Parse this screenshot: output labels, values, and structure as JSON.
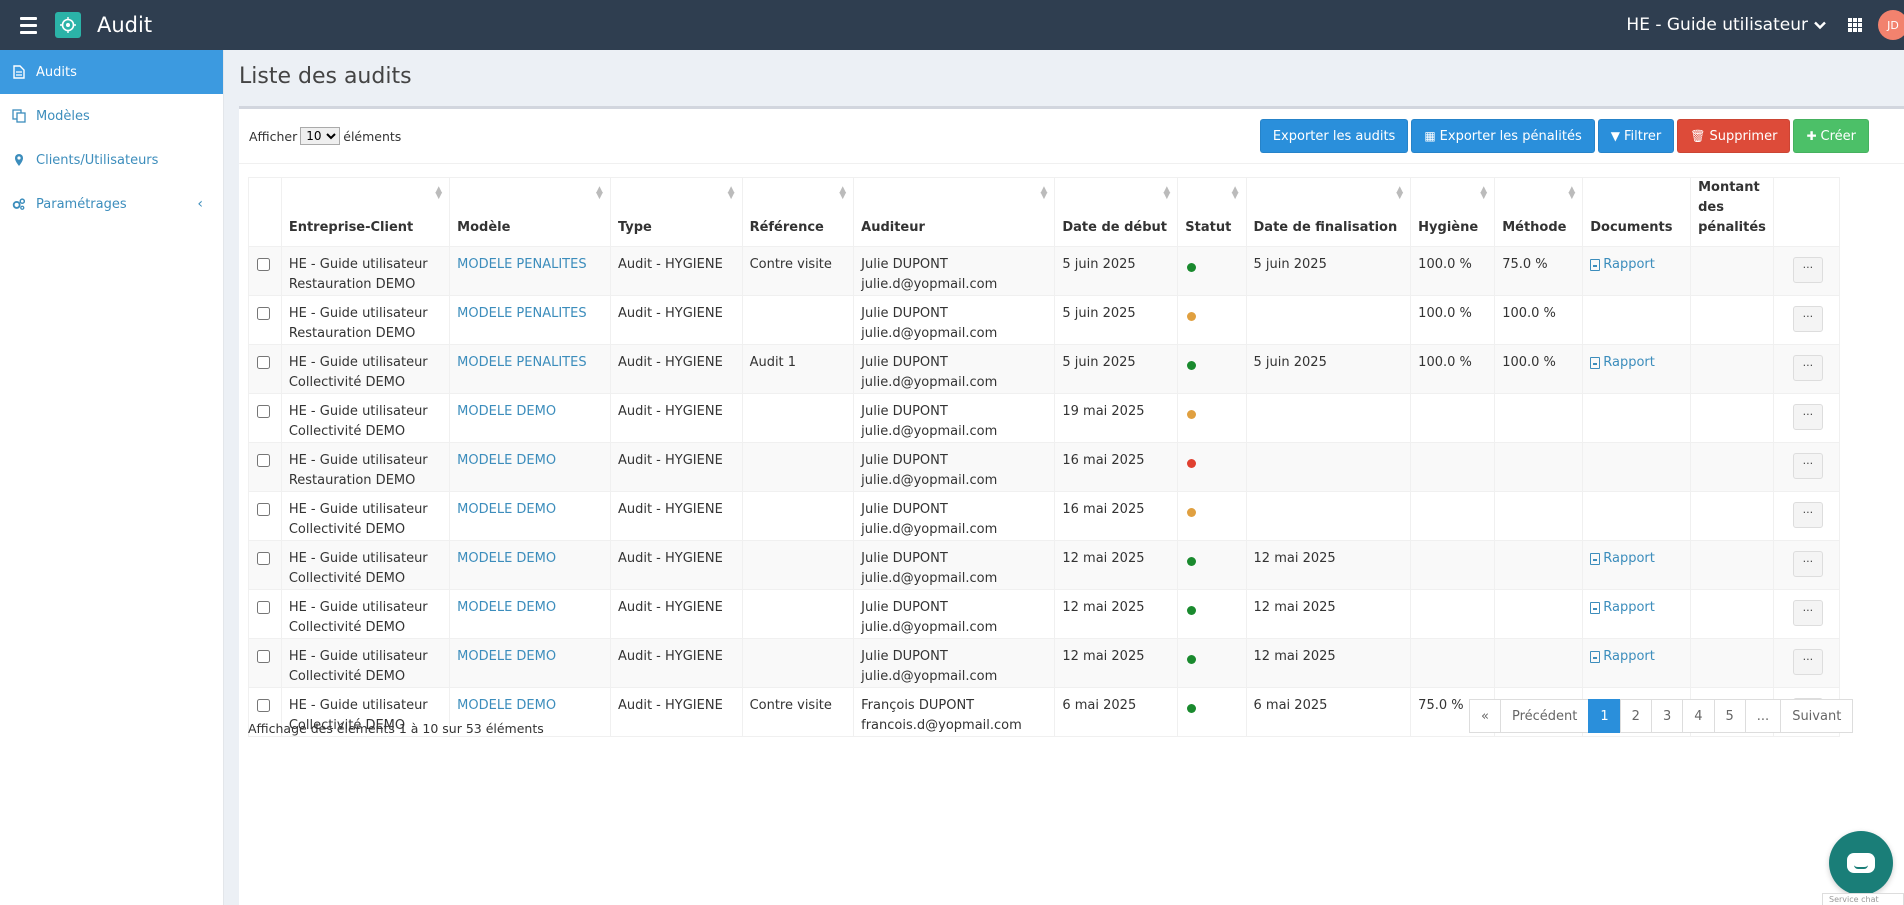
{
  "header": {
    "app_title": "Audit",
    "org_name": "HE - Guide utilisateur",
    "user_initials": "JD"
  },
  "sidebar": {
    "items": [
      {
        "label": "Audits",
        "icon": "document-icon"
      },
      {
        "label": "Modèles",
        "icon": "copy-icon"
      },
      {
        "label": "Clients/Utilisateurs",
        "icon": "map-marker-icon"
      },
      {
        "label": "Paramétrages",
        "icon": "cogs-icon"
      }
    ]
  },
  "page": {
    "title": "Liste des audits"
  },
  "toolbar": {
    "show_prefix": "Afficher",
    "show_value": "10",
    "show_suffix": "éléments",
    "export_audits": "Exporter les audits",
    "export_penalties": "Exporter les pénalités",
    "filter": "Filtrer",
    "delete": "Supprimer",
    "create": "Créer"
  },
  "table": {
    "headers": {
      "company": "Entreprise-Client",
      "model": "Modèle",
      "type": "Type",
      "reference": "Référence",
      "auditor": "Auditeur",
      "start": "Date de début",
      "status": "Statut",
      "end": "Date de finalisation",
      "hygiene": "Hygiène",
      "method": "Méthode",
      "documents": "Documents",
      "penalties": "Montant des pénalités"
    },
    "rows": [
      {
        "company1": "HE - Guide utilisateur",
        "company2": "Restauration DEMO",
        "model": "MODELE PENALITES",
        "type": "Audit - HYGIENE",
        "reference": "Contre visite",
        "auditor_name": "Julie DUPONT",
        "auditor_email": "julie.d@yopmail.com",
        "start": "5 juin 2025",
        "status_color": "#1a8a2e",
        "end": "5 juin 2025",
        "hygiene": "100.0 %",
        "method": "75.0 %",
        "document": "Rapport",
        "more": "..."
      },
      {
        "company1": "HE - Guide utilisateur",
        "company2": "Restauration DEMO",
        "model": "MODELE PENALITES",
        "type": "Audit - HYGIENE",
        "reference": "",
        "auditor_name": "Julie DUPONT",
        "auditor_email": "julie.d@yopmail.com",
        "start": "5 juin 2025",
        "status_color": "#e0a040",
        "end": "",
        "hygiene": "100.0 %",
        "method": "100.0 %",
        "document": "",
        "more": "..."
      },
      {
        "company1": "HE - Guide utilisateur",
        "company2": "Collectivité DEMO",
        "model": "MODELE PENALITES",
        "type": "Audit - HYGIENE",
        "reference": "Audit 1",
        "auditor_name": "Julie DUPONT",
        "auditor_email": "julie.d@yopmail.com",
        "start": "5 juin 2025",
        "status_color": "#1a8a2e",
        "end": "5 juin 2025",
        "hygiene": "100.0 %",
        "method": "100.0 %",
        "document": "Rapport",
        "more": "..."
      },
      {
        "company1": "HE - Guide utilisateur",
        "company2": "Collectivité DEMO",
        "model": "MODELE DEMO",
        "type": "Audit - HYGIENE",
        "reference": "",
        "auditor_name": "Julie DUPONT",
        "auditor_email": "julie.d@yopmail.com",
        "start": "19 mai 2025",
        "status_color": "#e0a040",
        "end": "",
        "hygiene": "",
        "method": "",
        "document": "",
        "more": "..."
      },
      {
        "company1": "HE - Guide utilisateur",
        "company2": "Restauration DEMO",
        "model": "MODELE DEMO",
        "type": "Audit - HYGIENE",
        "reference": "",
        "auditor_name": "Julie DUPONT",
        "auditor_email": "julie.d@yopmail.com",
        "start": "16 mai 2025",
        "status_color": "#e04030",
        "end": "",
        "hygiene": "",
        "method": "",
        "document": "",
        "more": "..."
      },
      {
        "company1": "HE - Guide utilisateur",
        "company2": "Collectivité DEMO",
        "model": "MODELE DEMO",
        "type": "Audit - HYGIENE",
        "reference": "",
        "auditor_name": "Julie DUPONT",
        "auditor_email": "julie.d@yopmail.com",
        "start": "16 mai 2025",
        "status_color": "#e0a040",
        "end": "",
        "hygiene": "",
        "method": "",
        "document": "",
        "more": "..."
      },
      {
        "company1": "HE - Guide utilisateur",
        "company2": "Collectivité DEMO",
        "model": "MODELE DEMO",
        "type": "Audit - HYGIENE",
        "reference": "",
        "auditor_name": "Julie DUPONT",
        "auditor_email": "julie.d@yopmail.com",
        "start": "12 mai 2025",
        "status_color": "#1a8a2e",
        "end": "12 mai 2025",
        "hygiene": "",
        "method": "",
        "document": "Rapport",
        "more": "..."
      },
      {
        "company1": "HE - Guide utilisateur",
        "company2": "Collectivité DEMO",
        "model": "MODELE DEMO",
        "type": "Audit - HYGIENE",
        "reference": "",
        "auditor_name": "Julie DUPONT",
        "auditor_email": "julie.d@yopmail.com",
        "start": "12 mai 2025",
        "status_color": "#1a8a2e",
        "end": "12 mai 2025",
        "hygiene": "",
        "method": "",
        "document": "Rapport",
        "more": "..."
      },
      {
        "company1": "HE - Guide utilisateur",
        "company2": "Collectivité DEMO",
        "model": "MODELE DEMO",
        "type": "Audit - HYGIENE",
        "reference": "",
        "auditor_name": "Julie DUPONT",
        "auditor_email": "julie.d@yopmail.com",
        "start": "12 mai 2025",
        "status_color": "#1a8a2e",
        "end": "12 mai 2025",
        "hygiene": "",
        "method": "",
        "document": "Rapport",
        "more": "..."
      },
      {
        "company1": "HE - Guide utilisateur",
        "company2": "Collectivité DEMO",
        "model": "MODELE DEMO",
        "type": "Audit - HYGIENE",
        "reference": "Contre visite",
        "auditor_name": "François DUPONT",
        "auditor_email": "francois.d@yopmail.com",
        "start": "6 mai 2025",
        "status_color": "#1a8a2e",
        "end": "6 mai 2025",
        "hygiene": "75.0 %",
        "method": "",
        "document": "Rapport",
        "more": "..."
      }
    ]
  },
  "footer": {
    "info": "Affichage des élements 1 à 10 sur 53 éléments",
    "pager": [
      "«",
      "Précédent",
      "1",
      "2",
      "3",
      "4",
      "5",
      "...",
      "Suivant"
    ],
    "active_page": "1"
  },
  "chat": {
    "tag": "Service chat"
  }
}
